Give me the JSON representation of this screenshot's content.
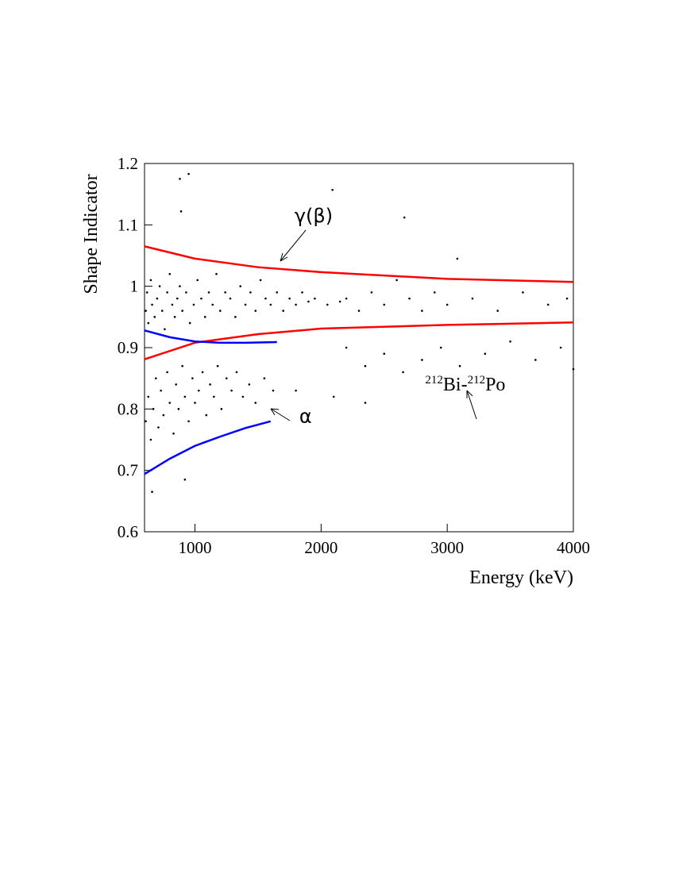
{
  "chart_data": {
    "type": "scatter",
    "x_label": "Energy (keV)",
    "y_label": "Shape Indicator",
    "xlim": [
      600,
      4000
    ],
    "xticks": [
      1000,
      2000,
      3000,
      4000
    ],
    "ylim": [
      0.6,
      1.2
    ],
    "yticks": [
      0.6,
      0.7,
      0.8,
      0.9,
      1,
      1.1,
      1.2
    ],
    "annotations": [
      {
        "text": "γ(β)",
        "x": 1600,
        "y": 1.023
      },
      {
        "text": "α",
        "x": 1600,
        "y": 0.8
      },
      {
        "parts": [
          "212",
          "Bi-",
          "212",
          "Po"
        ],
        "x": 3140,
        "y": 0.83
      }
    ],
    "series": [
      {
        "type": "scatter",
        "color": "#000000",
        "x": [
          610,
          620,
          630,
          650,
          660,
          680,
          700,
          720,
          740,
          760,
          780,
          800,
          820,
          840,
          860,
          880,
          900,
          930,
          960,
          990,
          1020,
          1050,
          1080,
          1110,
          1140,
          1170,
          1200,
          1240,
          1280,
          1320,
          1360,
          1400,
          1440,
          1480,
          1520,
          1560,
          1600,
          1650,
          1700,
          1750,
          1800,
          1850,
          1900,
          1950,
          2050,
          2150,
          610,
          630,
          650,
          670,
          690,
          710,
          730,
          750,
          780,
          800,
          830,
          850,
          870,
          900,
          920,
          950,
          980,
          1000,
          1030,
          1060,
          1090,
          1120,
          1150,
          1180,
          1210,
          1250,
          1290,
          1330,
          1380,
          1430,
          1480,
          1550,
          1620,
          2200,
          2300,
          2400,
          2500,
          2600,
          2700,
          2800,
          2900,
          3000,
          3200,
          3400,
          3600,
          3800,
          3950,
          2200,
          2350,
          2500,
          2650,
          2800,
          2950,
          3100,
          3300,
          3500,
          3700,
          3900,
          4000,
          2100,
          2350,
          1800,
          880,
          950,
          890,
          2090,
          2660,
          3080,
          920,
          660
        ],
        "y": [
          0.96,
          0.99,
          0.94,
          1.01,
          0.97,
          0.95,
          0.98,
          1.0,
          0.96,
          0.93,
          0.99,
          1.02,
          0.97,
          0.95,
          0.98,
          1.0,
          0.96,
          0.99,
          0.94,
          0.97,
          1.01,
          0.98,
          0.95,
          0.99,
          0.97,
          1.02,
          0.96,
          0.99,
          0.98,
          0.95,
          1.0,
          0.97,
          0.99,
          0.96,
          1.01,
          0.98,
          0.97,
          0.99,
          0.96,
          0.98,
          0.97,
          0.99,
          0.975,
          0.98,
          0.97,
          0.975,
          0.78,
          0.82,
          0.75,
          0.8,
          0.85,
          0.77,
          0.83,
          0.79,
          0.86,
          0.81,
          0.76,
          0.84,
          0.8,
          0.87,
          0.82,
          0.78,
          0.85,
          0.81,
          0.83,
          0.86,
          0.79,
          0.84,
          0.82,
          0.87,
          0.8,
          0.85,
          0.83,
          0.86,
          0.82,
          0.84,
          0.81,
          0.85,
          0.83,
          0.98,
          0.96,
          0.99,
          0.97,
          1.01,
          0.98,
          0.96,
          0.99,
          0.97,
          0.98,
          0.96,
          0.99,
          0.97,
          0.98,
          0.9,
          0.87,
          0.89,
          0.86,
          0.88,
          0.9,
          0.87,
          0.89,
          0.91,
          0.88,
          0.9,
          0.865,
          0.82,
          0.81,
          0.83,
          1.175,
          1.183,
          1.122,
          1.157,
          1.112,
          1.045,
          0.685,
          0.665
        ]
      },
      {
        "type": "line",
        "color": "#ff0000",
        "x": [
          600,
          1000,
          1500,
          2000,
          3000,
          4000
        ],
        "y": [
          1.065,
          1.045,
          1.031,
          1.023,
          1.012,
          1.007
        ]
      },
      {
        "type": "line",
        "color": "#ff0000",
        "x": [
          600,
          1000,
          1500,
          2000,
          3000,
          4000
        ],
        "y": [
          0.881,
          0.908,
          0.922,
          0.931,
          0.937,
          0.941
        ]
      },
      {
        "type": "line",
        "color": "#0000ff",
        "x": [
          600,
          800,
          1000,
          1200,
          1400,
          1650
        ],
        "y": [
          0.928,
          0.917,
          0.91,
          0.908,
          0.908,
          0.909
        ]
      },
      {
        "type": "line",
        "color": "#0000ff",
        "x": [
          600,
          800,
          1000,
          1200,
          1400,
          1600
        ],
        "y": [
          0.694,
          0.719,
          0.74,
          0.755,
          0.769,
          0.78
        ]
      }
    ]
  }
}
